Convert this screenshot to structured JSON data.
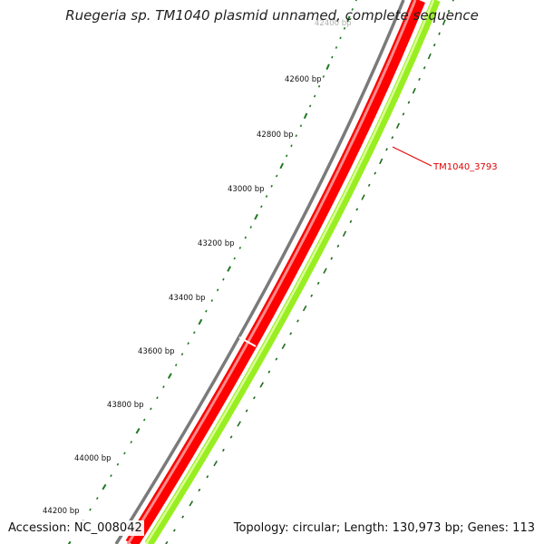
{
  "title": "Ruegeria sp. TM1040 plasmid unnamed, complete sequence",
  "accession": "Accession: NC_008042",
  "summary": "Topology: circular; Length: 130,973 bp; Genes: 113",
  "gene_label": "TM1040_3793",
  "ruler_labels": [
    {
      "id": "bp-42400",
      "text": "42400 bp"
    },
    {
      "id": "bp-42600",
      "text": "42600 bp"
    },
    {
      "id": "bp-42800",
      "text": "42800 bp"
    },
    {
      "id": "bp-43000",
      "text": "43000 bp"
    },
    {
      "id": "bp-43200",
      "text": "43200 bp"
    },
    {
      "id": "bp-43400",
      "text": "43400 bp"
    },
    {
      "id": "bp-43600",
      "text": "43600 bp"
    },
    {
      "id": "bp-43800",
      "text": "43800 bp"
    },
    {
      "id": "bp-44000",
      "text": "44000 bp"
    },
    {
      "id": "bp-44200",
      "text": "44200 bp"
    }
  ],
  "colors": {
    "backbone": "#7a7a7a",
    "gene": "#ff0000",
    "gene_highlight": "#ff8a8a",
    "gc_content": "#99ee22",
    "gc_highlight": "#ddff99",
    "ruler_ticks": "#1f7a1f",
    "gc_ticks": "#1f6b1f"
  }
}
